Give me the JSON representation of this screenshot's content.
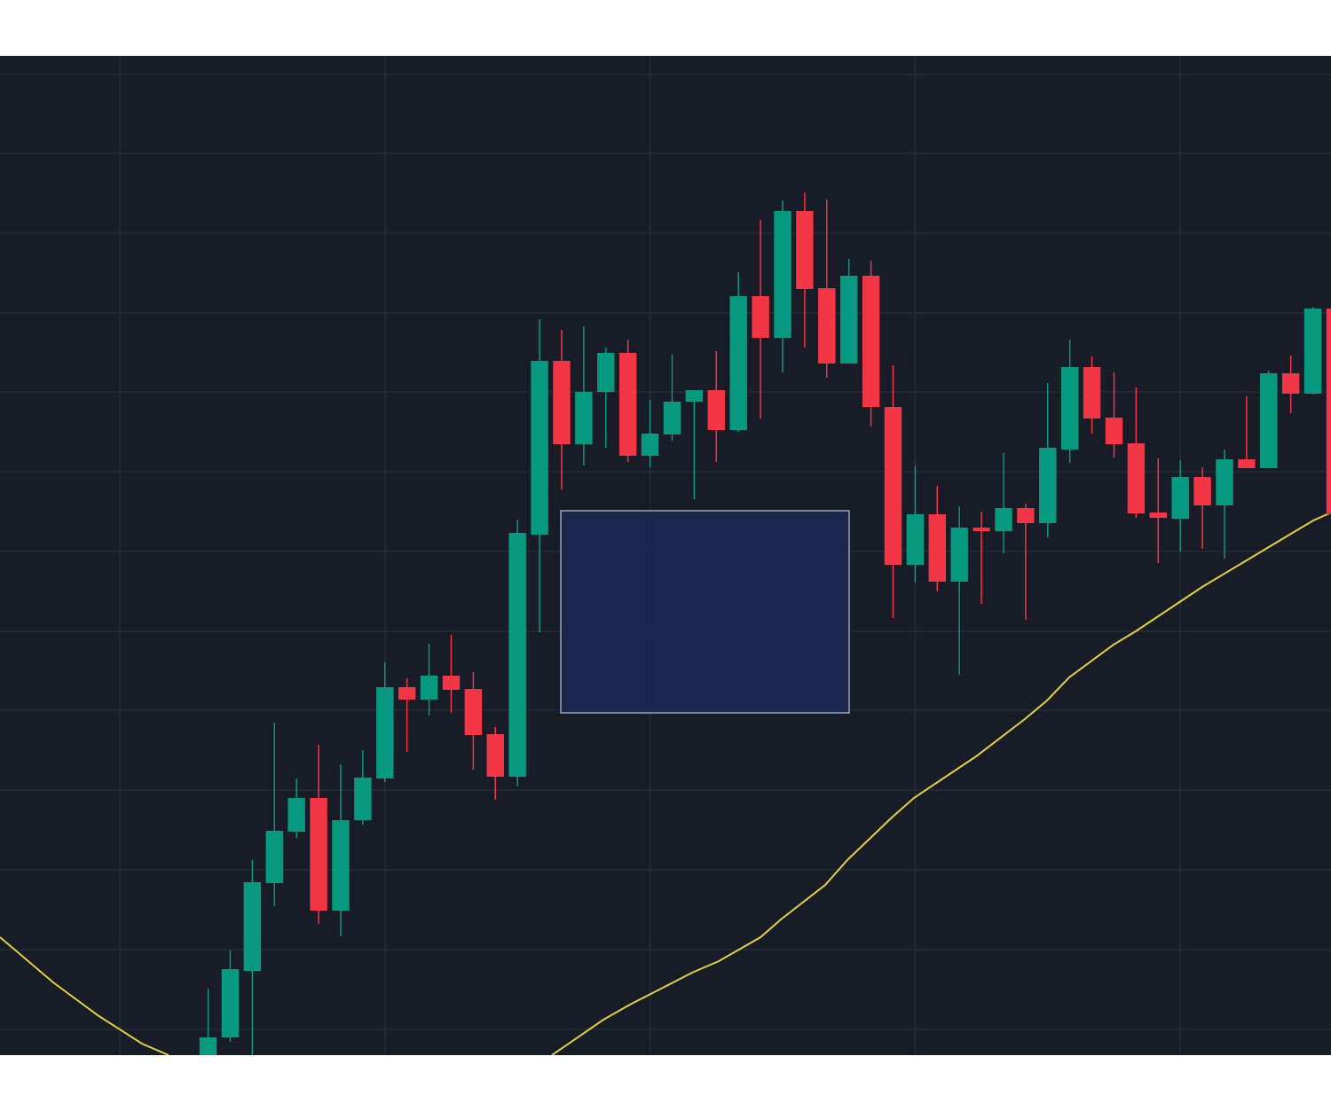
{
  "chart_data": {
    "type": "candlestick",
    "up_color": "#089981",
    "down_color": "#f23645",
    "grid": true,
    "xlim": [
      -5.42,
      54.82
    ],
    "ylim": [
      0,
      1127
    ],
    "xticks": [
      0,
      12,
      24,
      36,
      48
    ],
    "yticks": [
      29,
      119,
      209,
      299,
      389,
      478,
      568,
      658,
      748,
      837,
      927,
      1017,
      1106
    ],
    "x": [
      4,
      5,
      6,
      7,
      8,
      9,
      10,
      11,
      12,
      13,
      14,
      15,
      16,
      17,
      18,
      19,
      20,
      21,
      22,
      23,
      24,
      25,
      26,
      27,
      28,
      29,
      30,
      31,
      32,
      33,
      34,
      35,
      36,
      37,
      38,
      39,
      40,
      41,
      42,
      43,
      44,
      45,
      46,
      47,
      48,
      49,
      50,
      51,
      52,
      53,
      54,
      55
    ],
    "open": [
      -10,
      20,
      95,
      194,
      252,
      290,
      163,
      265,
      312,
      415,
      401,
      428,
      413,
      362,
      314,
      587,
      783,
      689,
      748,
      792,
      676,
      700,
      737,
      750,
      705,
      856,
      809,
      952,
      865,
      780,
      879,
      731,
      553,
      610,
      534,
      595,
      591,
      617,
      600,
      683,
      776,
      719,
      690,
      612,
      605,
      652,
      620,
      672,
      662,
      769,
      746,
      842
    ],
    "high": [
      75,
      118,
      220,
      375,
      312,
      350,
      328,
      344,
      443,
      425,
      464,
      474,
      432,
      370,
      604,
      830,
      818,
      822,
      798,
      807,
      739,
      790,
      750,
      794,
      883,
      942,
      964,
      973,
      965,
      898,
      896,
      778,
      665,
      642,
      619,
      613,
      679,
      622,
      758,
      807,
      788,
      770,
      753,
      673,
      671,
      663,
      683,
      743,
      772,
      789,
      844,
      842
    ],
    "low": [
      -20,
      15,
      -10,
      168,
      245,
      148,
      134,
      260,
      308,
      342,
      383,
      386,
      322,
      288,
      303,
      477,
      638,
      665,
      685,
      669,
      663,
      693,
      627,
      669,
      703,
      718,
      770,
      798,
      764,
      780,
      709,
      493,
      533,
      523,
      429,
      509,
      566,
      491,
      584,
      668,
      701,
      674,
      606,
      555,
      568,
      571,
      560,
      662,
      662,
      724,
      745,
      605
    ],
    "close": [
      20,
      97,
      195,
      253,
      290,
      163,
      265,
      313,
      415,
      401,
      428,
      412,
      361,
      314,
      589,
      783,
      689,
      748,
      792,
      676,
      701,
      737,
      750,
      705,
      856,
      809,
      952,
      864,
      780,
      879,
      731,
      553,
      610,
      534,
      595,
      591,
      617,
      600,
      685,
      776,
      718,
      689,
      611,
      606,
      652,
      620,
      672,
      662,
      769,
      746,
      842,
      610
    ],
    "ma": {
      "color": "#e3d13a",
      "x": [
        -5.42,
        -3.01,
        -1.0,
        1.0,
        2.21,
        null,
        19.56,
        21.89,
        23.09,
        25.9,
        27.11,
        29.0,
        29.92,
        31.93,
        32.93,
        34.94,
        35.94,
        38.76,
        40.96,
        41.97,
        42.97,
        44.98,
        45.98,
        48.99,
        50.8,
        53.01,
        54.02,
        54.82
      ],
      "values": [
        133,
        82,
        45,
        13,
        0,
        null,
        0,
        40,
        57,
        93,
        106,
        133,
        153,
        192,
        220,
        268,
        290,
        337,
        379,
        400,
        426,
        463,
        478,
        528,
        555,
        588,
        603,
        612
      ]
    }
  }
}
